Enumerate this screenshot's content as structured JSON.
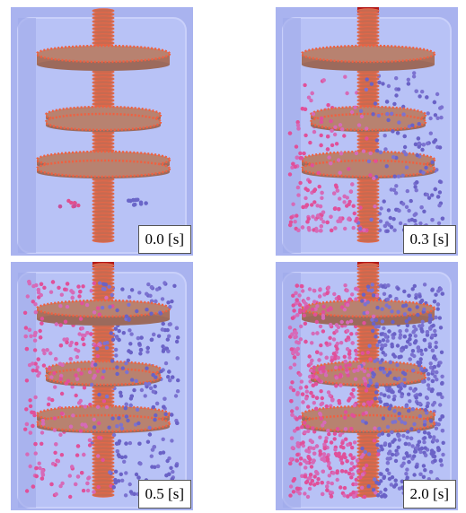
{
  "panels": [
    {
      "label": "0.0 [s]"
    },
    {
      "label": "0.3 [s]"
    },
    {
      "label": "0.5 [s]"
    },
    {
      "label": "2.0 [s]"
    }
  ]
}
